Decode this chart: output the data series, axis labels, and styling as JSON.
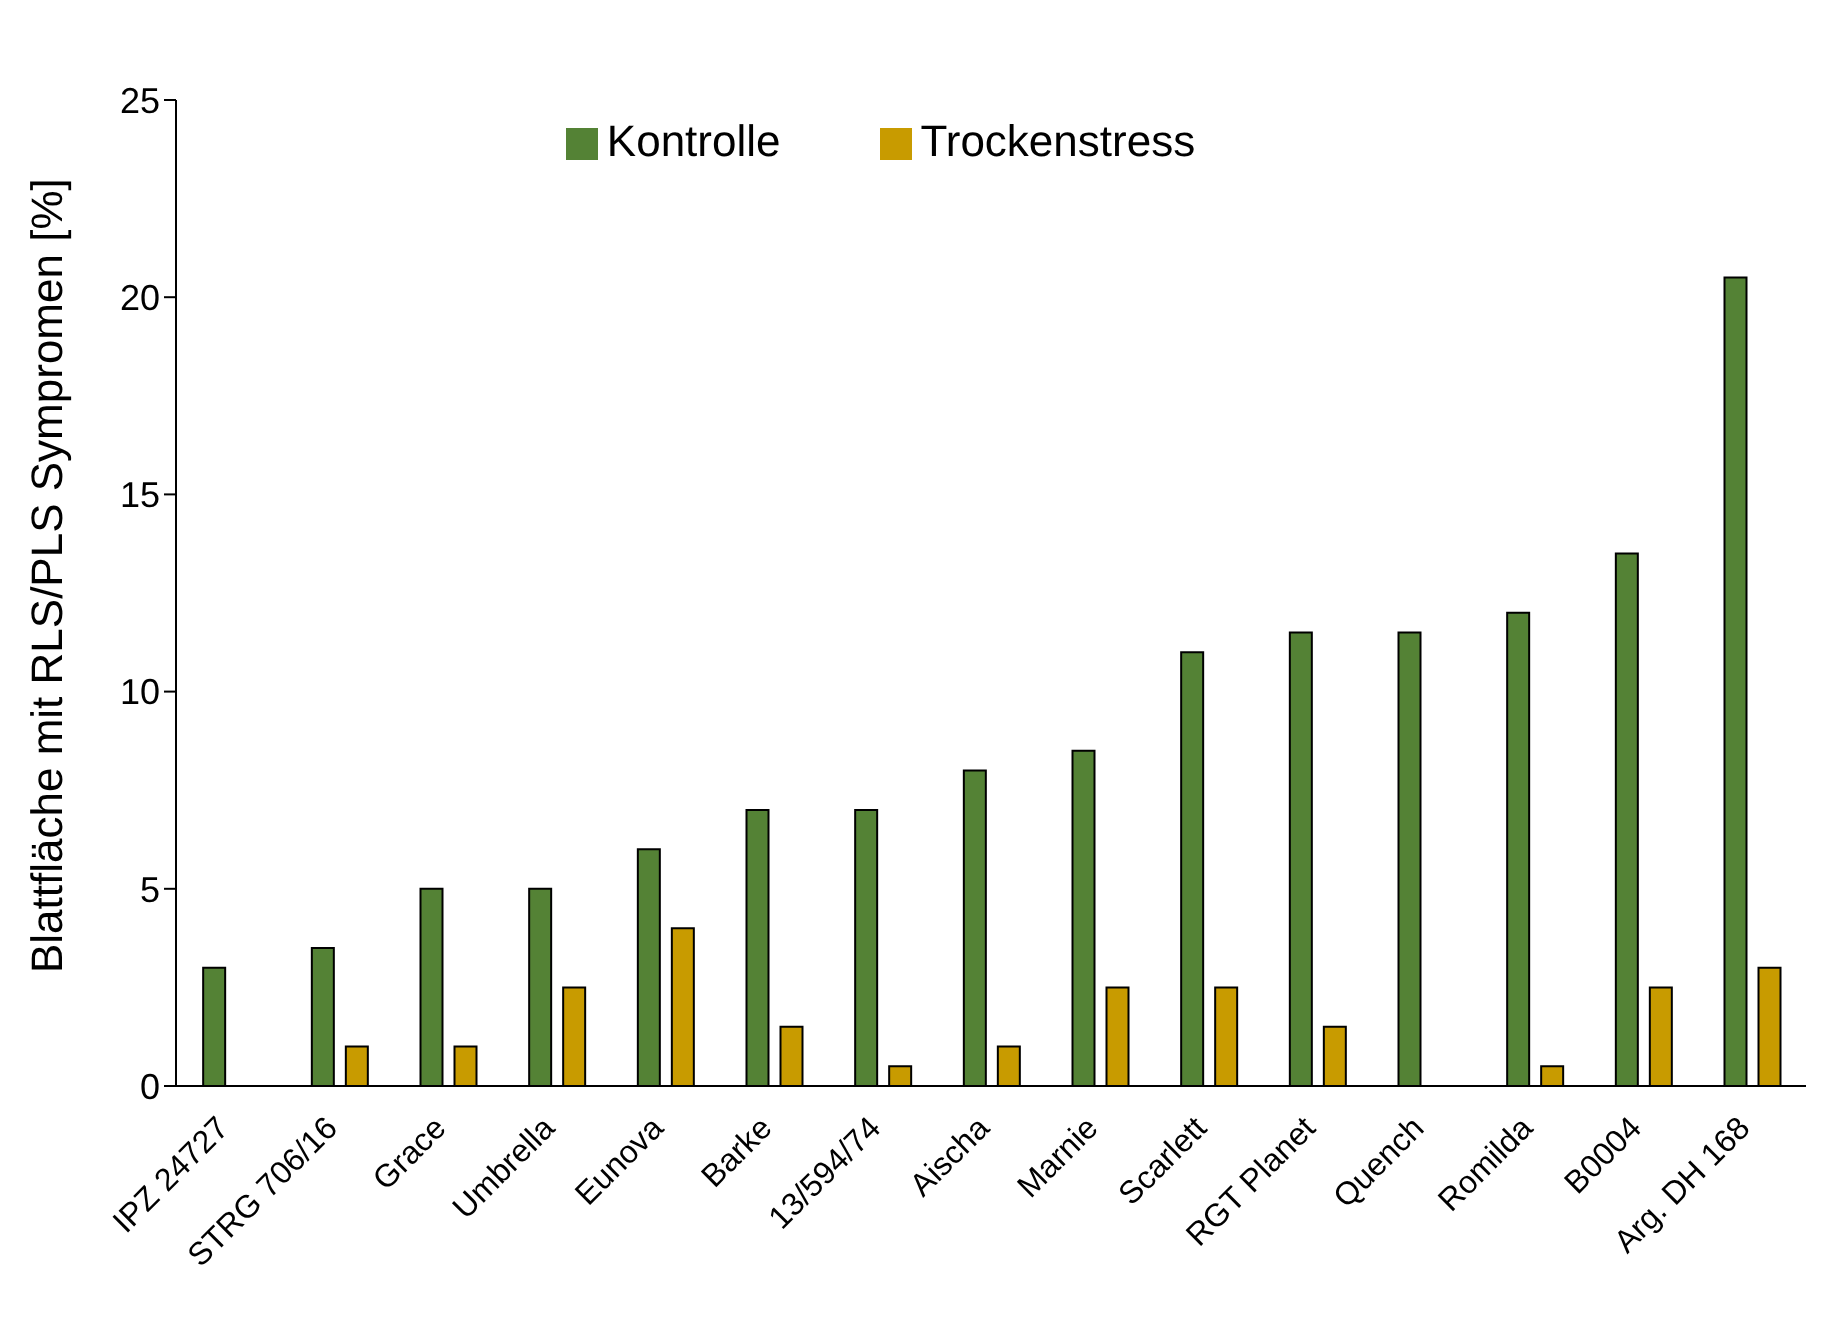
{
  "chart_data": {
    "type": "bar",
    "ylabel": "Blattfläche mit RLS/PLS Sympromen [%]",
    "categories": [
      "IPZ 24727",
      "STRG 706/16",
      "Grace",
      "Umbrella",
      "Eunova",
      "Barke",
      "13/594/74",
      "Aischa",
      "Marnie",
      "Scarlett",
      "RGT Planet",
      "Quench",
      "Romilda",
      "B0004",
      "Arg. DH 168"
    ],
    "series": [
      {
        "name": "Kontrolle",
        "color": "#548235",
        "values": [
          3,
          3.5,
          5,
          5,
          6,
          7,
          7,
          8,
          8.5,
          11,
          11.5,
          11.5,
          12,
          13.5,
          20.5
        ]
      },
      {
        "name": "Trockenstress",
        "color": "#c89b00",
        "values": [
          null,
          1,
          1,
          2.5,
          4,
          1.5,
          0.5,
          1,
          2.5,
          2.5,
          1.5,
          null,
          0.5,
          2.5,
          3
        ]
      }
    ],
    "ylim": [
      0,
      25
    ],
    "yticks": [
      0,
      5,
      10,
      15,
      20,
      25
    ],
    "legend": "top"
  }
}
